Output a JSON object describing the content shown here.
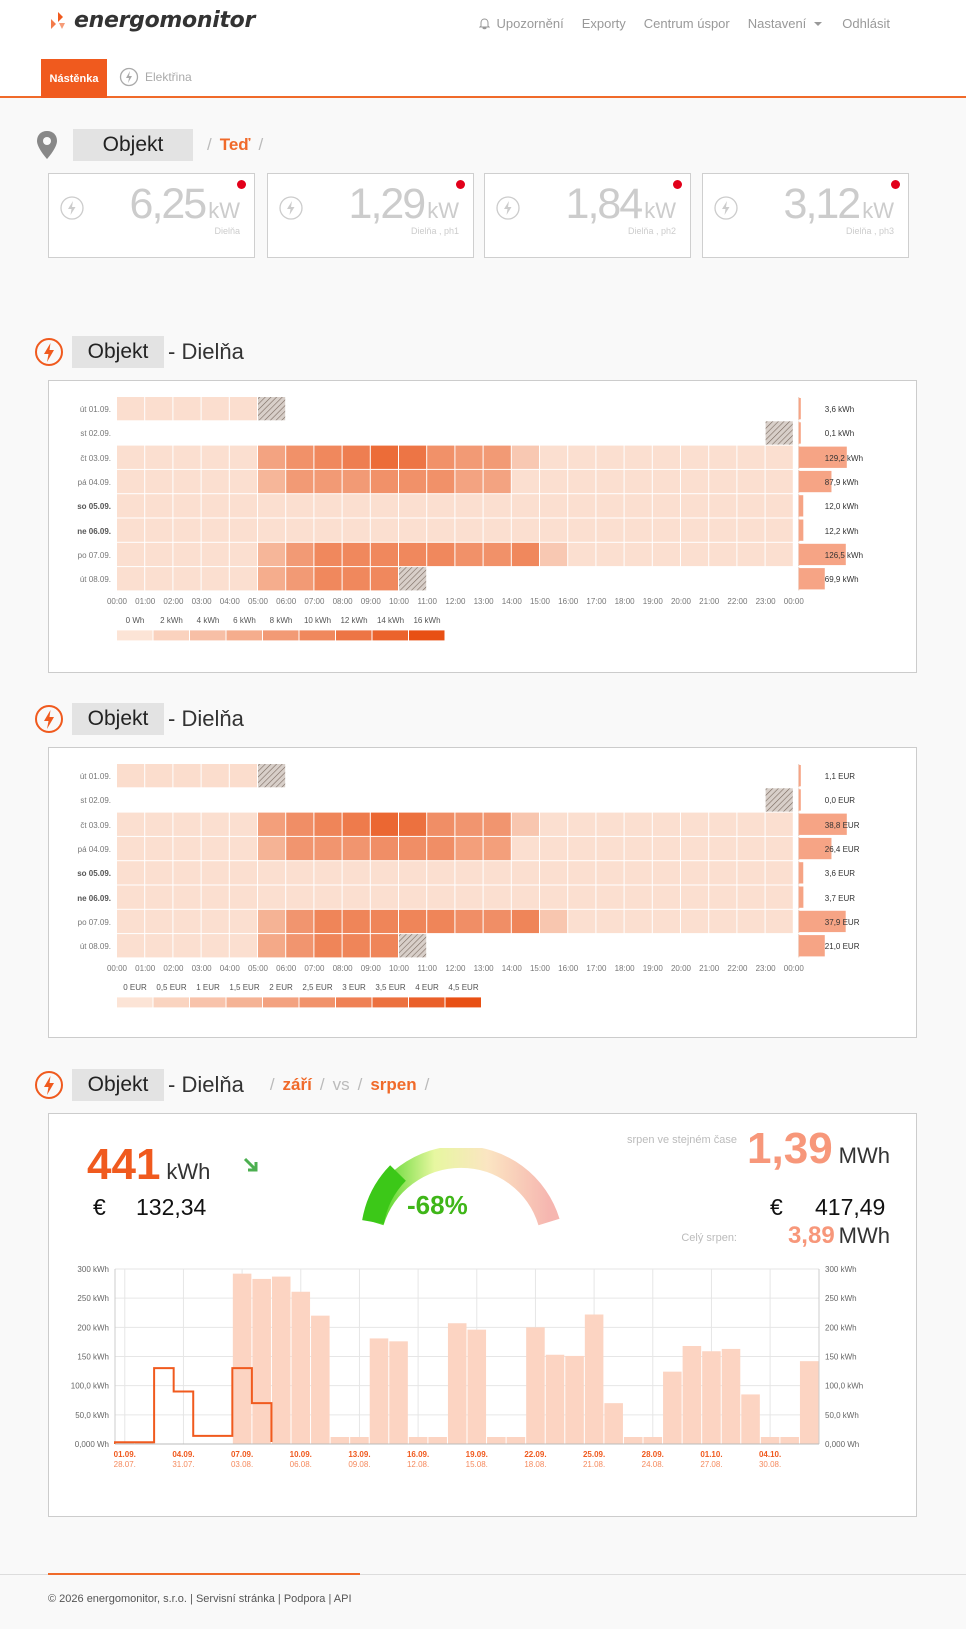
{
  "brand": {
    "name": "energomonitor",
    "accent": "#f05a1e"
  },
  "nav": {
    "items": [
      {
        "label": "Upozornění",
        "icon": "bell-icon"
      },
      {
        "label": "Exporty"
      },
      {
        "label": "Centrum úspor"
      },
      {
        "label": "Nastavení",
        "icon": "caret-down-icon"
      },
      {
        "label": "Odhlásit"
      }
    ]
  },
  "tabs": {
    "dashboard": "Nástěnka",
    "electricity": "Elektřina"
  },
  "now": {
    "object_label": "Objekt",
    "sep1": "/",
    "now_label": "Teď",
    "sep2": "/",
    "indicators": [
      {
        "value": "6,25",
        "unit": "kW",
        "label": "Dielňa"
      },
      {
        "value": "1,29",
        "unit": "kW",
        "label": "Dielňa , ph1"
      },
      {
        "value": "1,84",
        "unit": "kW",
        "label": "Dielňa , ph2"
      },
      {
        "value": "3,12",
        "unit": "kW",
        "label": "Dielňa , ph3"
      }
    ]
  },
  "heatmap_energy": {
    "object_label": "Objekt",
    "title": "- Dielňa"
  },
  "heatmap_cost": {
    "object_label": "Objekt",
    "title": "- Dielňa"
  },
  "compare": {
    "object_label": "Objekt",
    "title": "- Dielňa",
    "crumbs": [
      "/",
      "září",
      "/",
      "vs",
      "/",
      "srpen",
      "/"
    ],
    "current_value": "441",
    "current_unit": "kWh",
    "euro": "€",
    "current_cost": "132,34",
    "percent": "-68%",
    "prev_label": "srpen ve stejném čase",
    "prev_value": "1,39",
    "prev_unit": "MWh",
    "prev_cost": "417,49",
    "full_label": "Celý srpen:",
    "full_value": "3,89",
    "full_unit": "MWh"
  },
  "footer": {
    "copyright": "© 2026 energomonitor, s.r.o.",
    "sep": "|",
    "links": [
      "Servisní stránka",
      "Podpora",
      "API"
    ]
  },
  "chart_data": [
    {
      "type": "heatmap",
      "unit": "kWh",
      "rows": [
        "út 01.09.",
        "st 02.09.",
        "čt 03.09.",
        "pá 04.09.",
        "so 05.09.",
        "ne 06.09.",
        "po 07.09.",
        "út 08.09."
      ],
      "bold_rows": [
        4,
        5
      ],
      "hours": [
        "00:00",
        "01:00",
        "02:00",
        "03:00",
        "04:00",
        "05:00",
        "06:00",
        "07:00",
        "08:00",
        "09:00",
        "10:00",
        "11:00",
        "12:00",
        "13:00",
        "14:00",
        "15:00",
        "16:00",
        "17:00",
        "18:00",
        "19:00",
        "20:00",
        "21:00",
        "22:00",
        "23:00",
        "00:00"
      ],
      "values": [
        [
          0.6,
          0.6,
          0.6,
          0.6,
          0.6,
          null,
          null,
          null,
          null,
          null,
          null,
          null,
          null,
          null,
          null,
          null,
          null,
          null,
          null,
          null,
          null,
          null,
          null,
          null
        ],
        [
          null,
          null,
          null,
          null,
          null,
          null,
          null,
          null,
          null,
          null,
          null,
          null,
          null,
          null,
          null,
          null,
          null,
          null,
          null,
          null,
          null,
          null,
          null,
          null
        ],
        [
          0.5,
          0.5,
          0.5,
          0.5,
          0.5,
          7,
          9,
          10,
          11,
          13,
          12,
          9,
          8,
          8,
          3,
          0.5,
          0.5,
          0.5,
          0.5,
          0.5,
          0.5,
          0.5,
          0.5,
          0.5
        ],
        [
          0.5,
          0.5,
          0.5,
          0.5,
          0.5,
          5,
          8,
          8,
          8,
          9,
          9,
          9,
          7,
          7,
          0.5,
          0.5,
          0.5,
          0.5,
          0.5,
          0.5,
          0.5,
          0.5,
          0.5,
          0.5
        ],
        [
          0.5,
          0.5,
          0.5,
          0.5,
          0.5,
          0.5,
          0.5,
          0.5,
          0.5,
          0.5,
          0.5,
          0.5,
          0.5,
          0.5,
          0.5,
          0.5,
          0.5,
          0.5,
          0.5,
          0.5,
          0.5,
          0.5,
          0.5,
          0.5
        ],
        [
          0.5,
          0.5,
          0.5,
          0.5,
          0.5,
          0.5,
          0.5,
          0.5,
          0.5,
          0.5,
          0.5,
          0.5,
          0.5,
          0.5,
          0.5,
          0.5,
          0.5,
          0.5,
          0.5,
          0.5,
          0.5,
          0.5,
          0.5,
          0.5
        ],
        [
          0.5,
          0.5,
          0.5,
          0.5,
          0.5,
          5,
          8,
          10,
          10,
          10,
          10,
          10,
          9,
          9,
          10,
          3,
          0.5,
          0.5,
          0.5,
          0.5,
          0.5,
          0.5,
          0.5,
          0.5
        ],
        [
          0.5,
          0.5,
          0.5,
          0.5,
          0.5,
          6,
          8,
          10,
          10,
          10,
          null,
          null,
          null,
          null,
          null,
          null,
          null,
          null,
          null,
          null,
          null,
          null,
          null,
          null
        ]
      ],
      "hatched": [
        [
          0,
          5
        ],
        [
          1,
          23
        ],
        [
          7,
          10
        ]
      ],
      "row_totals": [
        3.6,
        0.1,
        129.2,
        87.9,
        12.0,
        12.2,
        126.5,
        69.9
      ],
      "row_total_labels": [
        "3,6 kWh",
        "0,1 kWh",
        "129,2 kWh",
        "87,9 kWh",
        "12,0 kWh",
        "12,2 kWh",
        "126,5 kWh",
        "69,9 kWh"
      ],
      "legend": [
        "0 Wh",
        "2 kWh",
        "4 kWh",
        "6 kWh",
        "8 kWh",
        "10 kWh",
        "12 kWh",
        "14 kWh",
        "16 kWh"
      ],
      "scale_max": 16
    },
    {
      "type": "heatmap",
      "unit": "EUR",
      "rows": [
        "út 01.09.",
        "st 02.09.",
        "čt 03.09.",
        "pá 04.09.",
        "so 05.09.",
        "ne 06.09.",
        "po 07.09.",
        "út 08.09."
      ],
      "bold_rows": [
        4,
        5
      ],
      "hours": [
        "00:00",
        "01:00",
        "02:00",
        "03:00",
        "04:00",
        "05:00",
        "06:00",
        "07:00",
        "08:00",
        "09:00",
        "10:00",
        "11:00",
        "12:00",
        "13:00",
        "14:00",
        "15:00",
        "16:00",
        "17:00",
        "18:00",
        "19:00",
        "20:00",
        "21:00",
        "22:00",
        "23:00",
        "00:00"
      ],
      "values": [
        [
          0.2,
          0.2,
          0.2,
          0.2,
          0.2,
          null,
          null,
          null,
          null,
          null,
          null,
          null,
          null,
          null,
          null,
          null,
          null,
          null,
          null,
          null,
          null,
          null,
          null,
          null
        ],
        [
          null,
          null,
          null,
          null,
          null,
          null,
          null,
          null,
          null,
          null,
          null,
          null,
          null,
          null,
          null,
          null,
          null,
          null,
          null,
          null,
          null,
          null,
          null,
          null
        ],
        [
          0.15,
          0.15,
          0.15,
          0.15,
          0.15,
          2.1,
          2.6,
          2.9,
          3.2,
          3.8,
          3.5,
          2.6,
          2.4,
          2.4,
          0.9,
          0.15,
          0.15,
          0.15,
          0.15,
          0.15,
          0.15,
          0.15,
          0.15,
          0.15
        ],
        [
          0.15,
          0.15,
          0.15,
          0.15,
          0.15,
          1.5,
          2.4,
          2.4,
          2.4,
          2.6,
          2.6,
          2.6,
          2.1,
          2.1,
          0.15,
          0.15,
          0.15,
          0.15,
          0.15,
          0.15,
          0.15,
          0.15,
          0.15,
          0.15
        ],
        [
          0.15,
          0.15,
          0.15,
          0.15,
          0.15,
          0.15,
          0.15,
          0.15,
          0.15,
          0.15,
          0.15,
          0.15,
          0.15,
          0.15,
          0.15,
          0.15,
          0.15,
          0.15,
          0.15,
          0.15,
          0.15,
          0.15,
          0.15,
          0.15
        ],
        [
          0.15,
          0.15,
          0.15,
          0.15,
          0.15,
          0.15,
          0.15,
          0.15,
          0.15,
          0.15,
          0.15,
          0.15,
          0.15,
          0.15,
          0.15,
          0.15,
          0.15,
          0.15,
          0.15,
          0.15,
          0.15,
          0.15,
          0.15,
          0.15
        ],
        [
          0.15,
          0.15,
          0.15,
          0.15,
          0.15,
          1.5,
          2.4,
          2.9,
          2.9,
          2.9,
          2.9,
          2.9,
          2.6,
          2.6,
          2.9,
          0.9,
          0.15,
          0.15,
          0.15,
          0.15,
          0.15,
          0.15,
          0.15,
          0.15
        ],
        [
          0.15,
          0.15,
          0.15,
          0.15,
          0.15,
          1.8,
          2.4,
          2.9,
          2.9,
          2.9,
          null,
          null,
          null,
          null,
          null,
          null,
          null,
          null,
          null,
          null,
          null,
          null,
          null,
          null
        ]
      ],
      "hatched": [
        [
          0,
          5
        ],
        [
          1,
          23
        ],
        [
          7,
          10
        ]
      ],
      "row_totals": [
        1.1,
        0.0,
        38.8,
        26.4,
        3.6,
        3.7,
        37.9,
        21.0
      ],
      "row_total_labels": [
        "1,1 EUR",
        "0,0 EUR",
        "38,8 EUR",
        "26,4 EUR",
        "3,6 EUR",
        "3,7 EUR",
        "37,9 EUR",
        "21,0 EUR"
      ],
      "legend": [
        "0 EUR",
        "0,5 EUR",
        "1 EUR",
        "1,5 EUR",
        "2 EUR",
        "2,5 EUR",
        "3 EUR",
        "3,5 EUR",
        "4 EUR",
        "4,5 EUR"
      ],
      "scale_max": 4.5
    },
    {
      "type": "bar",
      "unit": "kWh",
      "x_current": [
        "01.09.",
        "04.09.",
        "07.09.",
        "10.09.",
        "13.09.",
        "16.09.",
        "19.09.",
        "22.09.",
        "25.09.",
        "28.09.",
        "01.10.",
        "04.10."
      ],
      "x_previous": [
        "28.07.",
        "31.07.",
        "03.08.",
        "06.08.",
        "09.08.",
        "12.08.",
        "15.08.",
        "18.08.",
        "21.08.",
        "24.08.",
        "27.08.",
        "30.08."
      ],
      "y_ticks": [
        "0,000 Wh",
        "50,0 kWh",
        "100,0 kWh",
        "150 kWh",
        "200 kWh",
        "250 kWh",
        "300 kWh"
      ],
      "y_ticks_right": [
        "0,000 Wh",
        "50,0 kWh",
        "100,0 kWh",
        "150 kWh",
        "200 kWh",
        "250 kWh",
        "300 kWh"
      ],
      "ylim": [
        0,
        300
      ],
      "previous_values": [
        4,
        4,
        0,
        0,
        0,
        0,
        292,
        283,
        287,
        261,
        220,
        12,
        12,
        181,
        176,
        12,
        12,
        207,
        196,
        12,
        12,
        200,
        153,
        151,
        222,
        70,
        12,
        12,
        124,
        168,
        159,
        163,
        85,
        12,
        12,
        142
      ],
      "current_values": [
        3,
        3,
        130,
        90,
        14,
        14,
        130,
        70
      ],
      "colors": {
        "previous": "#fcd4c2",
        "current": "#f05a1e"
      }
    }
  ]
}
